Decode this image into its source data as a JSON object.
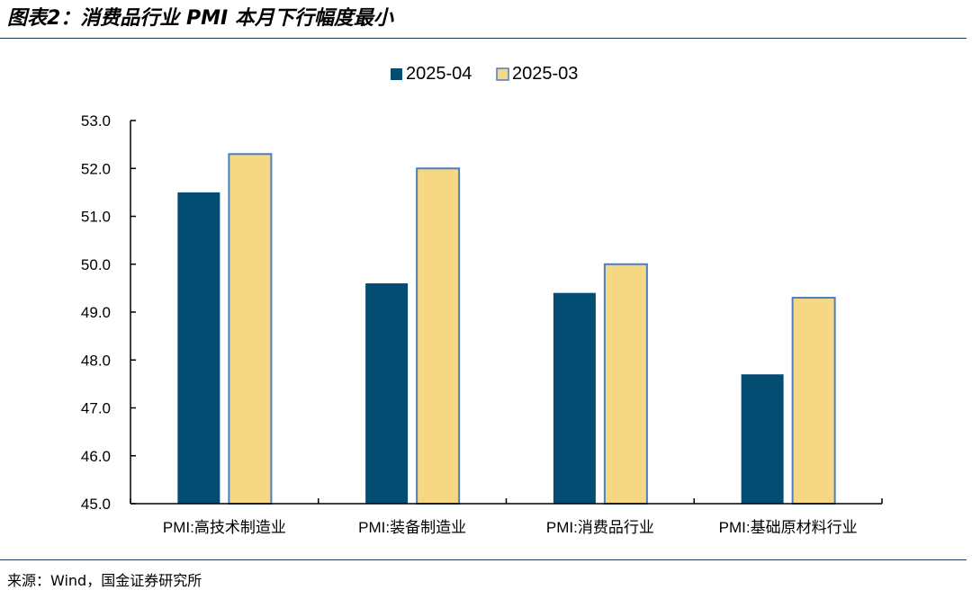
{
  "figure": {
    "title": "图表2：消费品行业 PMI 本月下行幅度最小",
    "source": "来源：Wind，国金证券研究所"
  },
  "colors": {
    "series_2025_04": "#034d73",
    "series_2025_03": "#f6d784",
    "series_2025_03_border": "#4a7fc0",
    "axis": "#000000",
    "rule": "#1f3b57"
  },
  "chart_data": {
    "type": "bar",
    "title": "",
    "xlabel": "",
    "ylabel": "",
    "ylim": [
      45.0,
      53.0
    ],
    "yticks": [
      "45.0",
      "46.0",
      "47.0",
      "48.0",
      "49.0",
      "50.0",
      "51.0",
      "52.0",
      "53.0"
    ],
    "grid": false,
    "legend_position": "top-center",
    "categories": [
      "PMI:高技术制造业",
      "PMI:装备制造业",
      "PMI:消费品行业",
      "PMI:基础原材料行业"
    ],
    "series": [
      {
        "name": "2025-04",
        "values": [
          51.5,
          49.6,
          49.4,
          47.7
        ]
      },
      {
        "name": "2025-03",
        "values": [
          52.3,
          52.0,
          50.0,
          49.3
        ]
      }
    ]
  }
}
